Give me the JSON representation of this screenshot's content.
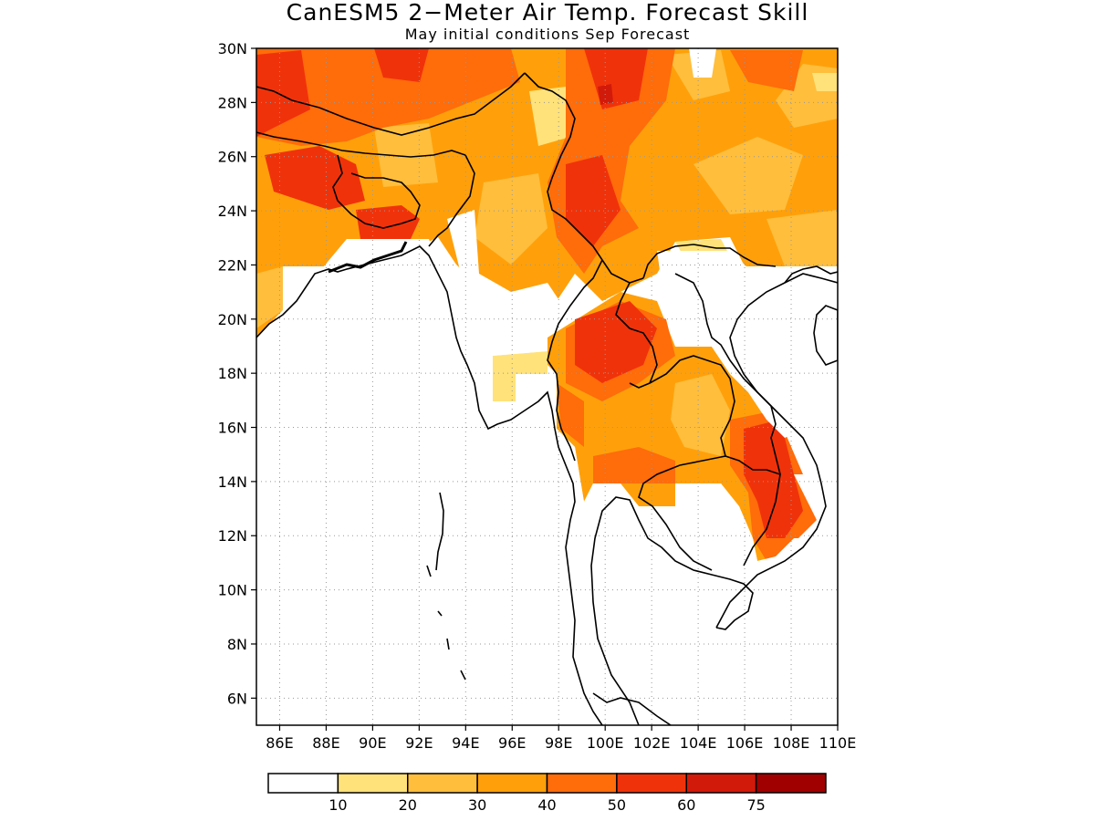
{
  "title": "CanESM5 2−Meter Air Temp. Forecast Skill",
  "subtitle": "May initial conditions  Sep Forecast",
  "map": {
    "lon_range": [
      85,
      110
    ],
    "lat_range": [
      5,
      30
    ],
    "lat_labels": [
      "30N",
      "28N",
      "26N",
      "24N",
      "22N",
      "20N",
      "18N",
      "16N",
      "14N",
      "12N",
      "10N",
      "8N",
      "6N"
    ],
    "lon_labels": [
      "86E",
      "88E",
      "90E",
      "92E",
      "94E",
      "96E",
      "98E",
      "100E",
      "102E",
      "104E",
      "106E",
      "108E",
      "110E"
    ],
    "grid": "dotted"
  },
  "colorbar": {
    "ticks": [
      "10",
      "20",
      "30",
      "40",
      "50",
      "60",
      "75"
    ],
    "colors": [
      "#ffffff",
      "#ffe27a",
      "#ffbe3c",
      "#ffa00a",
      "#ff6c0a",
      "#f0320a",
      "#d21a0a",
      "#a00000"
    ]
  }
}
